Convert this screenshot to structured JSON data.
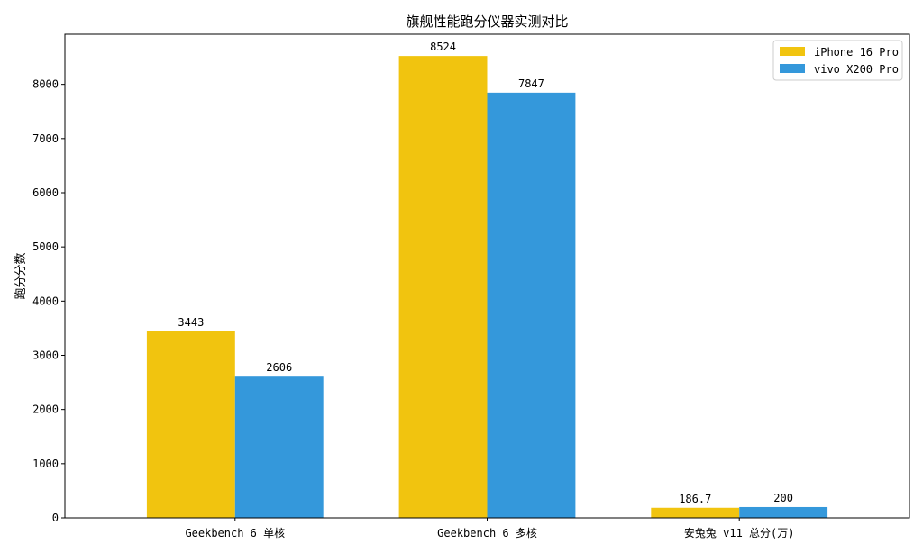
{
  "chart_data": {
    "type": "bar",
    "title": "旗舰性能跑分仪器实测对比",
    "xlabel": "",
    "ylabel": "跑分分数",
    "categories": [
      "Geekbench 6 单核",
      "Geekbench 6 多核",
      "安兔兔 v11 总分(万)"
    ],
    "series": [
      {
        "name": "iPhone 16 Pro",
        "color": "#f1c40f",
        "values": [
          3443,
          8524,
          186.7
        ],
        "labels": [
          "3443",
          "8524",
          "186.7"
        ]
      },
      {
        "name": "vivo X200 Pro",
        "color": "#3498db",
        "values": [
          2606,
          7847,
          200
        ],
        "labels": [
          "2606",
          "7847",
          "200"
        ]
      }
    ],
    "ylim": [
      0,
      8925
    ],
    "yticks": [
      0,
      1000,
      2000,
      3000,
      4000,
      5000,
      6000,
      7000,
      8000
    ],
    "grid": false,
    "legend_position": "top-right"
  }
}
